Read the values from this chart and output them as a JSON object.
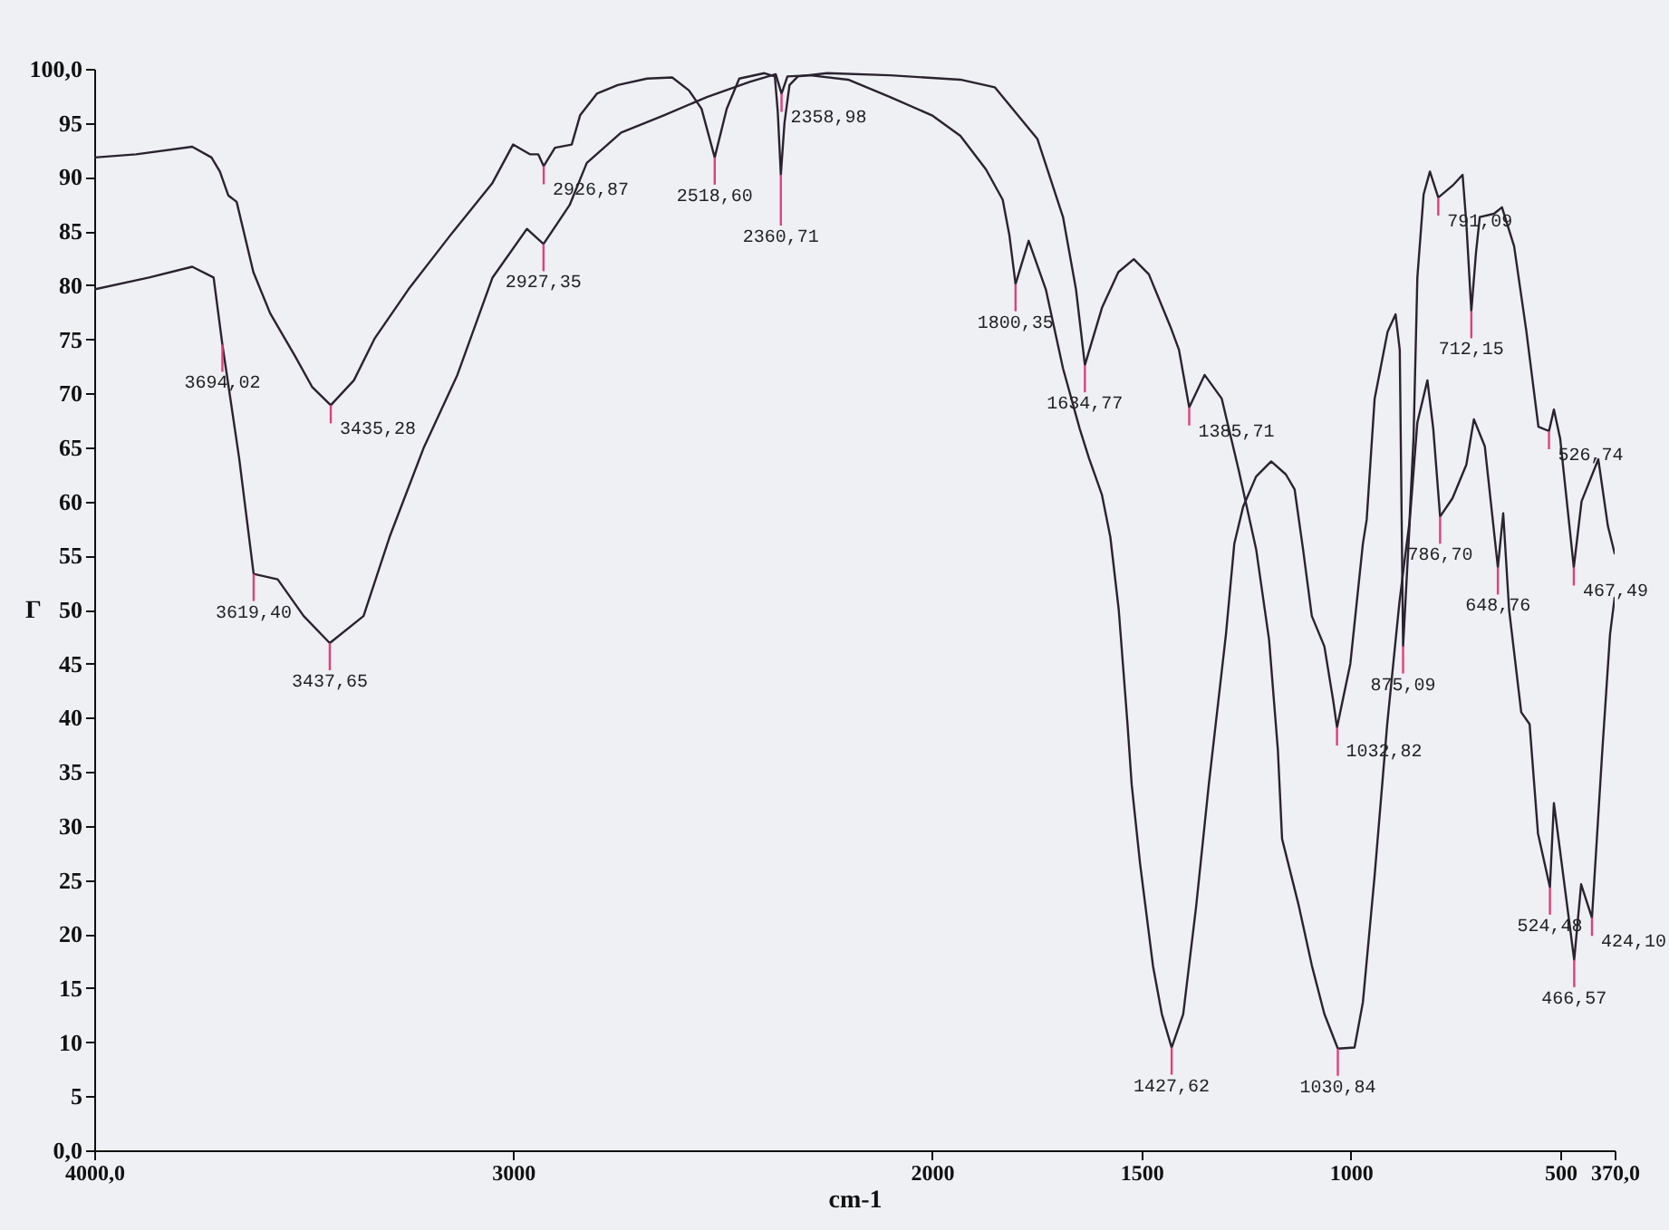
{
  "chart_data": {
    "type": "line",
    "xlabel": "cm-1",
    "ylabel": "Γ",
    "xlim": [
      4000,
      370
    ],
    "ylim": [
      0,
      100
    ],
    "xticks": [
      {
        "value": 4000,
        "label": "4000,0"
      },
      3000,
      2000,
      1500,
      1000,
      500,
      {
        "value": 370,
        "label": "370,0"
      }
    ],
    "yticks": [
      {
        "value": 0,
        "label": "0,0"
      },
      5,
      10,
      15,
      20,
      25,
      30,
      35,
      40,
      45,
      50,
      55,
      60,
      65,
      70,
      75,
      80,
      85,
      90,
      95,
      {
        "value": 100,
        "label": "100,0"
      }
    ],
    "series": [
      {
        "color": "#2b2230",
        "x": [
          4000,
          3900,
          3766,
          3720,
          3700,
          3680,
          3660,
          3620,
          3580,
          3520,
          3480,
          3435.28,
          3380,
          3330,
          3250,
          3150,
          3050,
          3000,
          2960,
          2940,
          2926.87,
          2900,
          2860,
          2840,
          2800,
          2750,
          2680,
          2620,
          2580,
          2550,
          2518.6,
          2490,
          2460,
          2400,
          2375,
          2368,
          2360.71,
          2352,
          2340,
          2320,
          2250,
          2100,
          1932,
          1850,
          1748,
          1687,
          1656,
          1634.77,
          1594,
          1555,
          1518,
          1482,
          1431,
          1410,
          1385.71,
          1349,
          1308,
          1267,
          1226,
          1195,
          1174,
          1164,
          1124,
          1093,
          1063,
          1030.84,
          991,
          971,
          943,
          913,
          884,
          870,
          860,
          850,
          841,
          826,
          811,
          791.09,
          757,
          733,
          724,
          712.15,
          701,
          692,
          658,
          639,
          610,
          581,
          552,
          526.74,
          515,
          500,
          467.49,
          449,
          409,
          386,
          370
        ],
        "values": [
          91.8,
          92.1,
          92.8,
          91.8,
          90.5,
          88.3,
          87.7,
          81.2,
          77.4,
          73.4,
          70.6,
          68.9,
          71.2,
          75.1,
          79.6,
          84.6,
          89.4,
          93.0,
          92.1,
          92.1,
          91.0,
          92.7,
          93.0,
          95.7,
          97.7,
          98.5,
          99.1,
          99.2,
          98.0,
          96.3,
          91.8,
          96.3,
          99.1,
          99.6,
          99.3,
          96.0,
          90.2,
          95.0,
          98.5,
          99.3,
          99.6,
          99.4,
          99.0,
          98.3,
          93.5,
          86.3,
          79.6,
          72.6,
          77.9,
          81.2,
          82.4,
          81.0,
          76.2,
          74.0,
          68.7,
          71.7,
          69.5,
          62.8,
          55.6,
          47.2,
          37.0,
          28.8,
          22.6,
          17.1,
          12.6,
          9.4,
          9.5,
          13.7,
          25.4,
          39.4,
          50.6,
          55.0,
          58.0,
          66.0,
          80.7,
          88.4,
          90.5,
          88.1,
          89.2,
          90.2,
          85.7,
          77.6,
          83.0,
          86.3,
          86.6,
          87.2,
          83.6,
          75.8,
          66.9,
          66.5,
          68.5,
          65.8,
          53.9,
          60.0,
          63.9,
          57.7,
          55.2
        ]
      },
      {
        "color": "#2b2230",
        "x": [
          4000,
          3869,
          3766,
          3715,
          3694.02,
          3654,
          3619.4,
          3562,
          3500,
          3437.65,
          3357,
          3295,
          3213,
          3133,
          3049,
          2967,
          2927.35,
          2865,
          2824,
          2742,
          2640,
          2537,
          2435,
          2373,
          2358.98,
          2345,
          2291,
          2200,
          2100,
          2000,
          1932,
          1871,
          1831,
          1815,
          1800.35,
          1769,
          1728,
          1687,
          1647,
          1625,
          1594,
          1574,
          1554,
          1533,
          1523,
          1503,
          1472,
          1451,
          1427.62,
          1400,
          1369,
          1339,
          1298,
          1278,
          1257,
          1226,
          1190,
          1155,
          1134,
          1114,
          1093,
          1063,
          1042,
          1032.82,
          1001,
          971,
          962,
          943,
          912,
          893,
          883,
          875.09,
          859,
          841,
          817,
          803,
          786.7,
          757,
          724,
          706,
          680,
          648.76,
          636,
          622,
          593,
          573,
          553,
          524.48,
          515,
          466.57,
          450,
          424.1,
          400,
          381,
          370
        ],
        "values": [
          79.6,
          80.7,
          81.7,
          80.7,
          74.5,
          64.0,
          53.3,
          52.8,
          49.4,
          46.9,
          49.4,
          56.7,
          65.0,
          71.7,
          80.7,
          85.2,
          83.8,
          87.4,
          91.3,
          94.1,
          95.7,
          97.4,
          98.8,
          99.5,
          97.7,
          99.3,
          99.4,
          99.0,
          97.4,
          95.7,
          93.8,
          90.7,
          87.9,
          84.6,
          80.1,
          84.1,
          79.6,
          72.3,
          66.7,
          64.0,
          60.6,
          56.7,
          50.0,
          39.4,
          33.8,
          26.5,
          17.0,
          12.6,
          9.5,
          12.6,
          22.6,
          33.8,
          47.7,
          56.1,
          59.5,
          62.3,
          63.7,
          62.5,
          61.1,
          55.6,
          49.4,
          46.6,
          41.6,
          39.1,
          45.0,
          56.1,
          58.3,
          69.5,
          75.7,
          77.3,
          74.0,
          46.6,
          58.3,
          67.3,
          71.2,
          66.7,
          58.6,
          60.3,
          63.4,
          67.6,
          65.1,
          53.9,
          58.9,
          50.0,
          40.5,
          39.4,
          29.3,
          24.3,
          32.1,
          17.6,
          24.6,
          21.5,
          36.6,
          47.7,
          51.1
        ]
      }
    ],
    "annotations": [
      {
        "text": "3694,02",
        "x": 3694.02,
        "y": 74.5
      },
      {
        "text": "3435,28",
        "x": 3435.28,
        "y": 68.9
      },
      {
        "text": "3619,40",
        "x": 3619.4,
        "y": 53.3
      },
      {
        "text": "3437,65",
        "x": 3437.65,
        "y": 46.9
      },
      {
        "text": "2926,87",
        "x": 2926.87,
        "y": 91.0
      },
      {
        "text": "2927,35",
        "x": 2927.35,
        "y": 83.8
      },
      {
        "text": "2518,60",
        "x": 2518.6,
        "y": 91.8
      },
      {
        "text": "2358,98",
        "x": 2358.98,
        "y": 97.7
      },
      {
        "text": "2360,71",
        "x": 2360.71,
        "y": 90.2
      },
      {
        "text": "1800,35",
        "x": 1800.35,
        "y": 80.1
      },
      {
        "text": "1634,77",
        "x": 1634.77,
        "y": 72.6
      },
      {
        "text": "1385,71",
        "x": 1385.71,
        "y": 68.7
      },
      {
        "text": "1427,62",
        "x": 1427.62,
        "y": 9.5
      },
      {
        "text": "1032,82",
        "x": 1032.82,
        "y": 39.1
      },
      {
        "text": "1030,84",
        "x": 1030.84,
        "y": 9.4
      },
      {
        "text": "875,09",
        "x": 875.09,
        "y": 46.6
      },
      {
        "text": "791,09",
        "x": 791.09,
        "y": 88.1
      },
      {
        "text": "712,15",
        "x": 712.15,
        "y": 77.6
      },
      {
        "text": "786,70",
        "x": 786.7,
        "y": 58.6
      },
      {
        "text": "648,76",
        "x": 648.76,
        "y": 53.9
      },
      {
        "text": "526,74",
        "x": 526.74,
        "y": 66.5
      },
      {
        "text": "467,49",
        "x": 467.49,
        "y": 53.9
      },
      {
        "text": "524,48",
        "x": 524.48,
        "y": 24.3
      },
      {
        "text": "466,57",
        "x": 466.57,
        "y": 17.6
      },
      {
        "text": "424,10",
        "x": 424.1,
        "y": 21.5
      }
    ]
  }
}
